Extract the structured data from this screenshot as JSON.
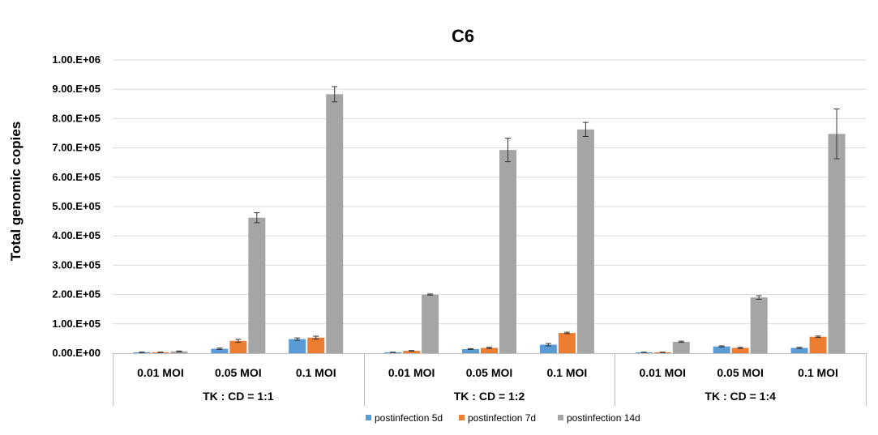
{
  "chart_data": {
    "type": "bar",
    "title": "C6",
    "xlabel": "",
    "ylabel": "Total genomic copies",
    "ylim": [
      0,
      1000000
    ],
    "y_tick_values": [
      0,
      100000,
      200000,
      300000,
      400000,
      500000,
      600000,
      700000,
      800000,
      900000,
      1000000
    ],
    "y_tick_labels": [
      "0.00.E+00",
      "1.00.E+05",
      "2.00.E+05",
      "3.00.E+05",
      "4.00.E+05",
      "5.00.E+05",
      "6.00.E+05",
      "7.00.E+05",
      "8.00.E+05",
      "9.00.E+05",
      "1.00.E+06"
    ],
    "groups": [
      {
        "label": "TK : CD = 1:1",
        "categories": [
          "0.01 MOI",
          "0.05 MOI",
          "0.1 MOI"
        ]
      },
      {
        "label": "TK : CD = 1:2",
        "categories": [
          "0.01 MOI",
          "0.05 MOI",
          "0.1 MOI"
        ]
      },
      {
        "label": "TK : CD = 1:4",
        "categories": [
          "0.01 MOI",
          "0.05 MOI",
          "0.1 MOI"
        ]
      }
    ],
    "series": [
      {
        "name": "postinfection 5d",
        "color": "#5B9BD5",
        "values": [
          3000,
          15000,
          48000,
          3000,
          14000,
          29000,
          3000,
          23000,
          18000
        ],
        "errors": [
          800,
          2500,
          4000,
          500,
          1500,
          4000,
          500,
          2000,
          2000
        ]
      },
      {
        "name": "postinfection 7d",
        "color": "#ED7D31",
        "values": [
          3000,
          42000,
          53000,
          8000,
          18000,
          69000,
          3000,
          18000,
          56000
        ],
        "errors": [
          800,
          5000,
          5000,
          1000,
          2000,
          2500,
          500,
          2000,
          2500
        ]
      },
      {
        "name": "postinfection 14d",
        "color": "#A5A5A5",
        "values": [
          6000,
          462000,
          883000,
          200000,
          693000,
          763000,
          39000,
          190000,
          748000
        ],
        "errors": [
          1500,
          17000,
          26000,
          2000,
          40000,
          24000,
          2000,
          6000,
          85000
        ]
      }
    ],
    "grid": true,
    "legend_position": "bottom"
  }
}
